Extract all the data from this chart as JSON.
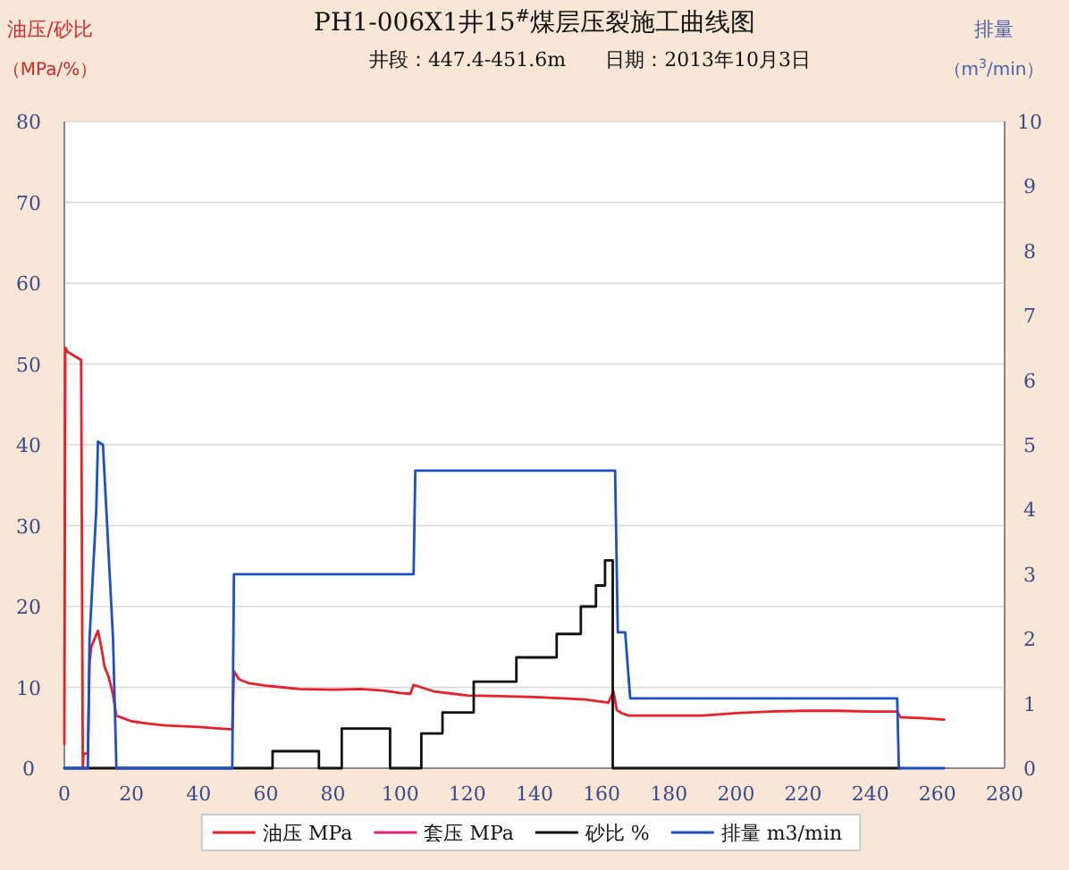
{
  "chart_data": {
    "type": "line",
    "title": "PH1-006X1井15$^{#}$煤层压裂施工曲线图",
    "subtitle": "井段：447.4-451.6m　　日期：2013年10月3日",
    "ylabel": "油压/砂比（MPa/%）",
    "y2label": "排量（m$^{3}$/min）",
    "xlim": [
      0,
      280
    ],
    "xticks": [
      0,
      20,
      40,
      60,
      80,
      100,
      120,
      140,
      160,
      180,
      200,
      220,
      240,
      260,
      280
    ],
    "ylim": [
      0,
      80
    ],
    "yticks": [
      0,
      10,
      20,
      30,
      40,
      50,
      60,
      70,
      80
    ],
    "y2lim": [
      0,
      10
    ],
    "y2ticks": [
      0,
      1,
      2,
      3,
      4,
      5,
      6,
      7,
      8,
      9,
      10
    ],
    "grid": "y",
    "legend": "bottom",
    "series": [
      {
        "name": "油压 MPa",
        "color": "#e8202a",
        "x": [
          0,
          0.3,
          1,
          3,
          5,
          5.5,
          5.7,
          7,
          7.5,
          8,
          9,
          10,
          11,
          12,
          13,
          14,
          14.5,
          15.5,
          20,
          25,
          30,
          40,
          50,
          50.5,
          52,
          55,
          60,
          65,
          70,
          80,
          88,
          95,
          100,
          103,
          104,
          110,
          120,
          130,
          140,
          150,
          155,
          162,
          163.5,
          164.5,
          166,
          168,
          180,
          190,
          200,
          210,
          220,
          230,
          240,
          248,
          249,
          255,
          262
        ],
        "values": [
          3,
          52,
          51.5,
          51,
          50.5,
          0,
          1.8,
          1.8,
          13,
          15,
          16,
          17,
          15,
          12.5,
          11.5,
          10,
          9,
          6.5,
          5.8,
          5.5,
          5.3,
          5.1,
          4.8,
          12,
          11,
          10.5,
          10.2,
          10,
          9.8,
          9.7,
          9.8,
          9.6,
          9.3,
          9.2,
          10.3,
          9.5,
          9,
          8.9,
          8.8,
          8.6,
          8.5,
          8.1,
          9.5,
          7.2,
          6.8,
          6.5,
          6.5,
          6.5,
          6.8,
          7,
          7.1,
          7.1,
          7,
          7,
          6.3,
          6.2,
          6
        ]
      },
      {
        "name": "套压 MPa",
        "color": "#e0207a"
      },
      {
        "name": "砂比 %",
        "color": "#111111",
        "x": [
          0,
          62,
          62,
          75.8,
          75.8,
          82.6,
          82.6,
          97,
          97,
          106.3,
          106.3,
          112.6,
          112.6,
          121.9,
          121.9,
          134.6,
          134.6,
          146.6,
          146.6,
          153.8,
          153.8,
          158.3,
          158.3,
          161,
          161,
          163.3,
          163.3,
          249
        ],
        "values": [
          0,
          0,
          2.1,
          2.1,
          0,
          0,
          4.9,
          4.9,
          0,
          0,
          4.3,
          4.3,
          6.9,
          6.9,
          10.7,
          10.7,
          13.7,
          13.7,
          16.6,
          16.6,
          20,
          20,
          22.6,
          22.6,
          25.7,
          25.7,
          0,
          0
        ]
      },
      {
        "name": "排量 m3/min",
        "color": "#1f4fc4",
        "axis": "y2",
        "x": [
          0,
          7,
          7.5,
          8.5,
          9.5,
          10,
          11.5,
          12.5,
          13.5,
          14.5,
          15.5,
          50,
          50.5,
          104,
          104.5,
          164,
          164.8,
          167,
          168.5,
          248,
          248.5,
          262
        ],
        "values": [
          0,
          0,
          2,
          3,
          4,
          5.05,
          5,
          4,
          3,
          2,
          0,
          0,
          3,
          3,
          4.6,
          4.6,
          2.1,
          2.1,
          1.08,
          1.08,
          0,
          0
        ]
      }
    ]
  }
}
